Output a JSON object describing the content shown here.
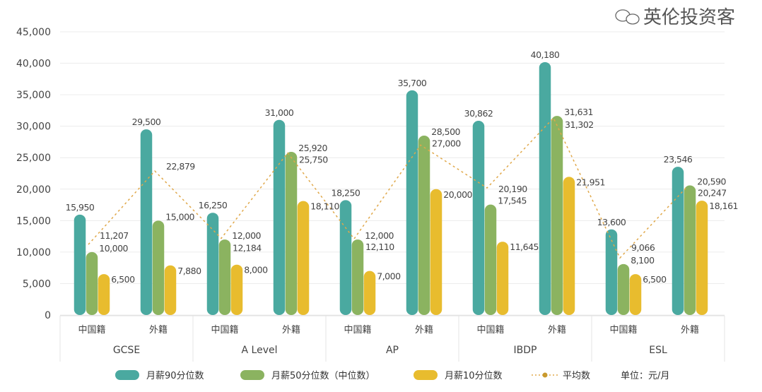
{
  "chart_data": {
    "type": "bar",
    "groups": [
      "GCSE",
      "A Level",
      "AP",
      "IBDP",
      "ESL"
    ],
    "subcategories": [
      "中国籍",
      "外籍"
    ],
    "categories": [
      "GCSE 中国籍",
      "GCSE 外籍",
      "A Level 中国籍",
      "A Level 外籍",
      "AP 中国籍",
      "AP 外籍",
      "IBDP 中国籍",
      "IBDP 外籍",
      "ESL 中国籍",
      "ESL 外籍"
    ],
    "series": [
      {
        "name": "月薪90分位数",
        "type": "bar",
        "color": "#4aa9a0",
        "values": [
          15950,
          29500,
          16250,
          31000,
          18250,
          35700,
          30862,
          40180,
          13600,
          23546
        ]
      },
      {
        "name": "月薪50分位数（中位数）",
        "type": "bar",
        "color": "#8bb360",
        "values": [
          10000,
          15000,
          12000,
          25920,
          12000,
          28500,
          17545,
          31631,
          8100,
          20590
        ]
      },
      {
        "name": "月薪10分位数",
        "type": "bar",
        "color": "#e8bc2e",
        "values": [
          6500,
          7880,
          8000,
          18110,
          7000,
          20000,
          11645,
          21951,
          6500,
          18161
        ]
      },
      {
        "name": "平均数",
        "type": "line",
        "style": "dotted",
        "color": "#e0a84a",
        "values": [
          11207,
          22879,
          12184,
          25750,
          12110,
          27000,
          20190,
          31302,
          9066,
          20247
        ]
      }
    ],
    "ylim": [
      0,
      45000
    ],
    "yticks": [
      "0",
      "5,000",
      "10,000",
      "15,000",
      "20,000",
      "25,000",
      "30,000",
      "35,000",
      "40,000",
      "45,000"
    ],
    "grid": true,
    "legend_position": "bottom",
    "unit_note": "单位：元/月"
  },
  "watermark": "英伦投资客"
}
